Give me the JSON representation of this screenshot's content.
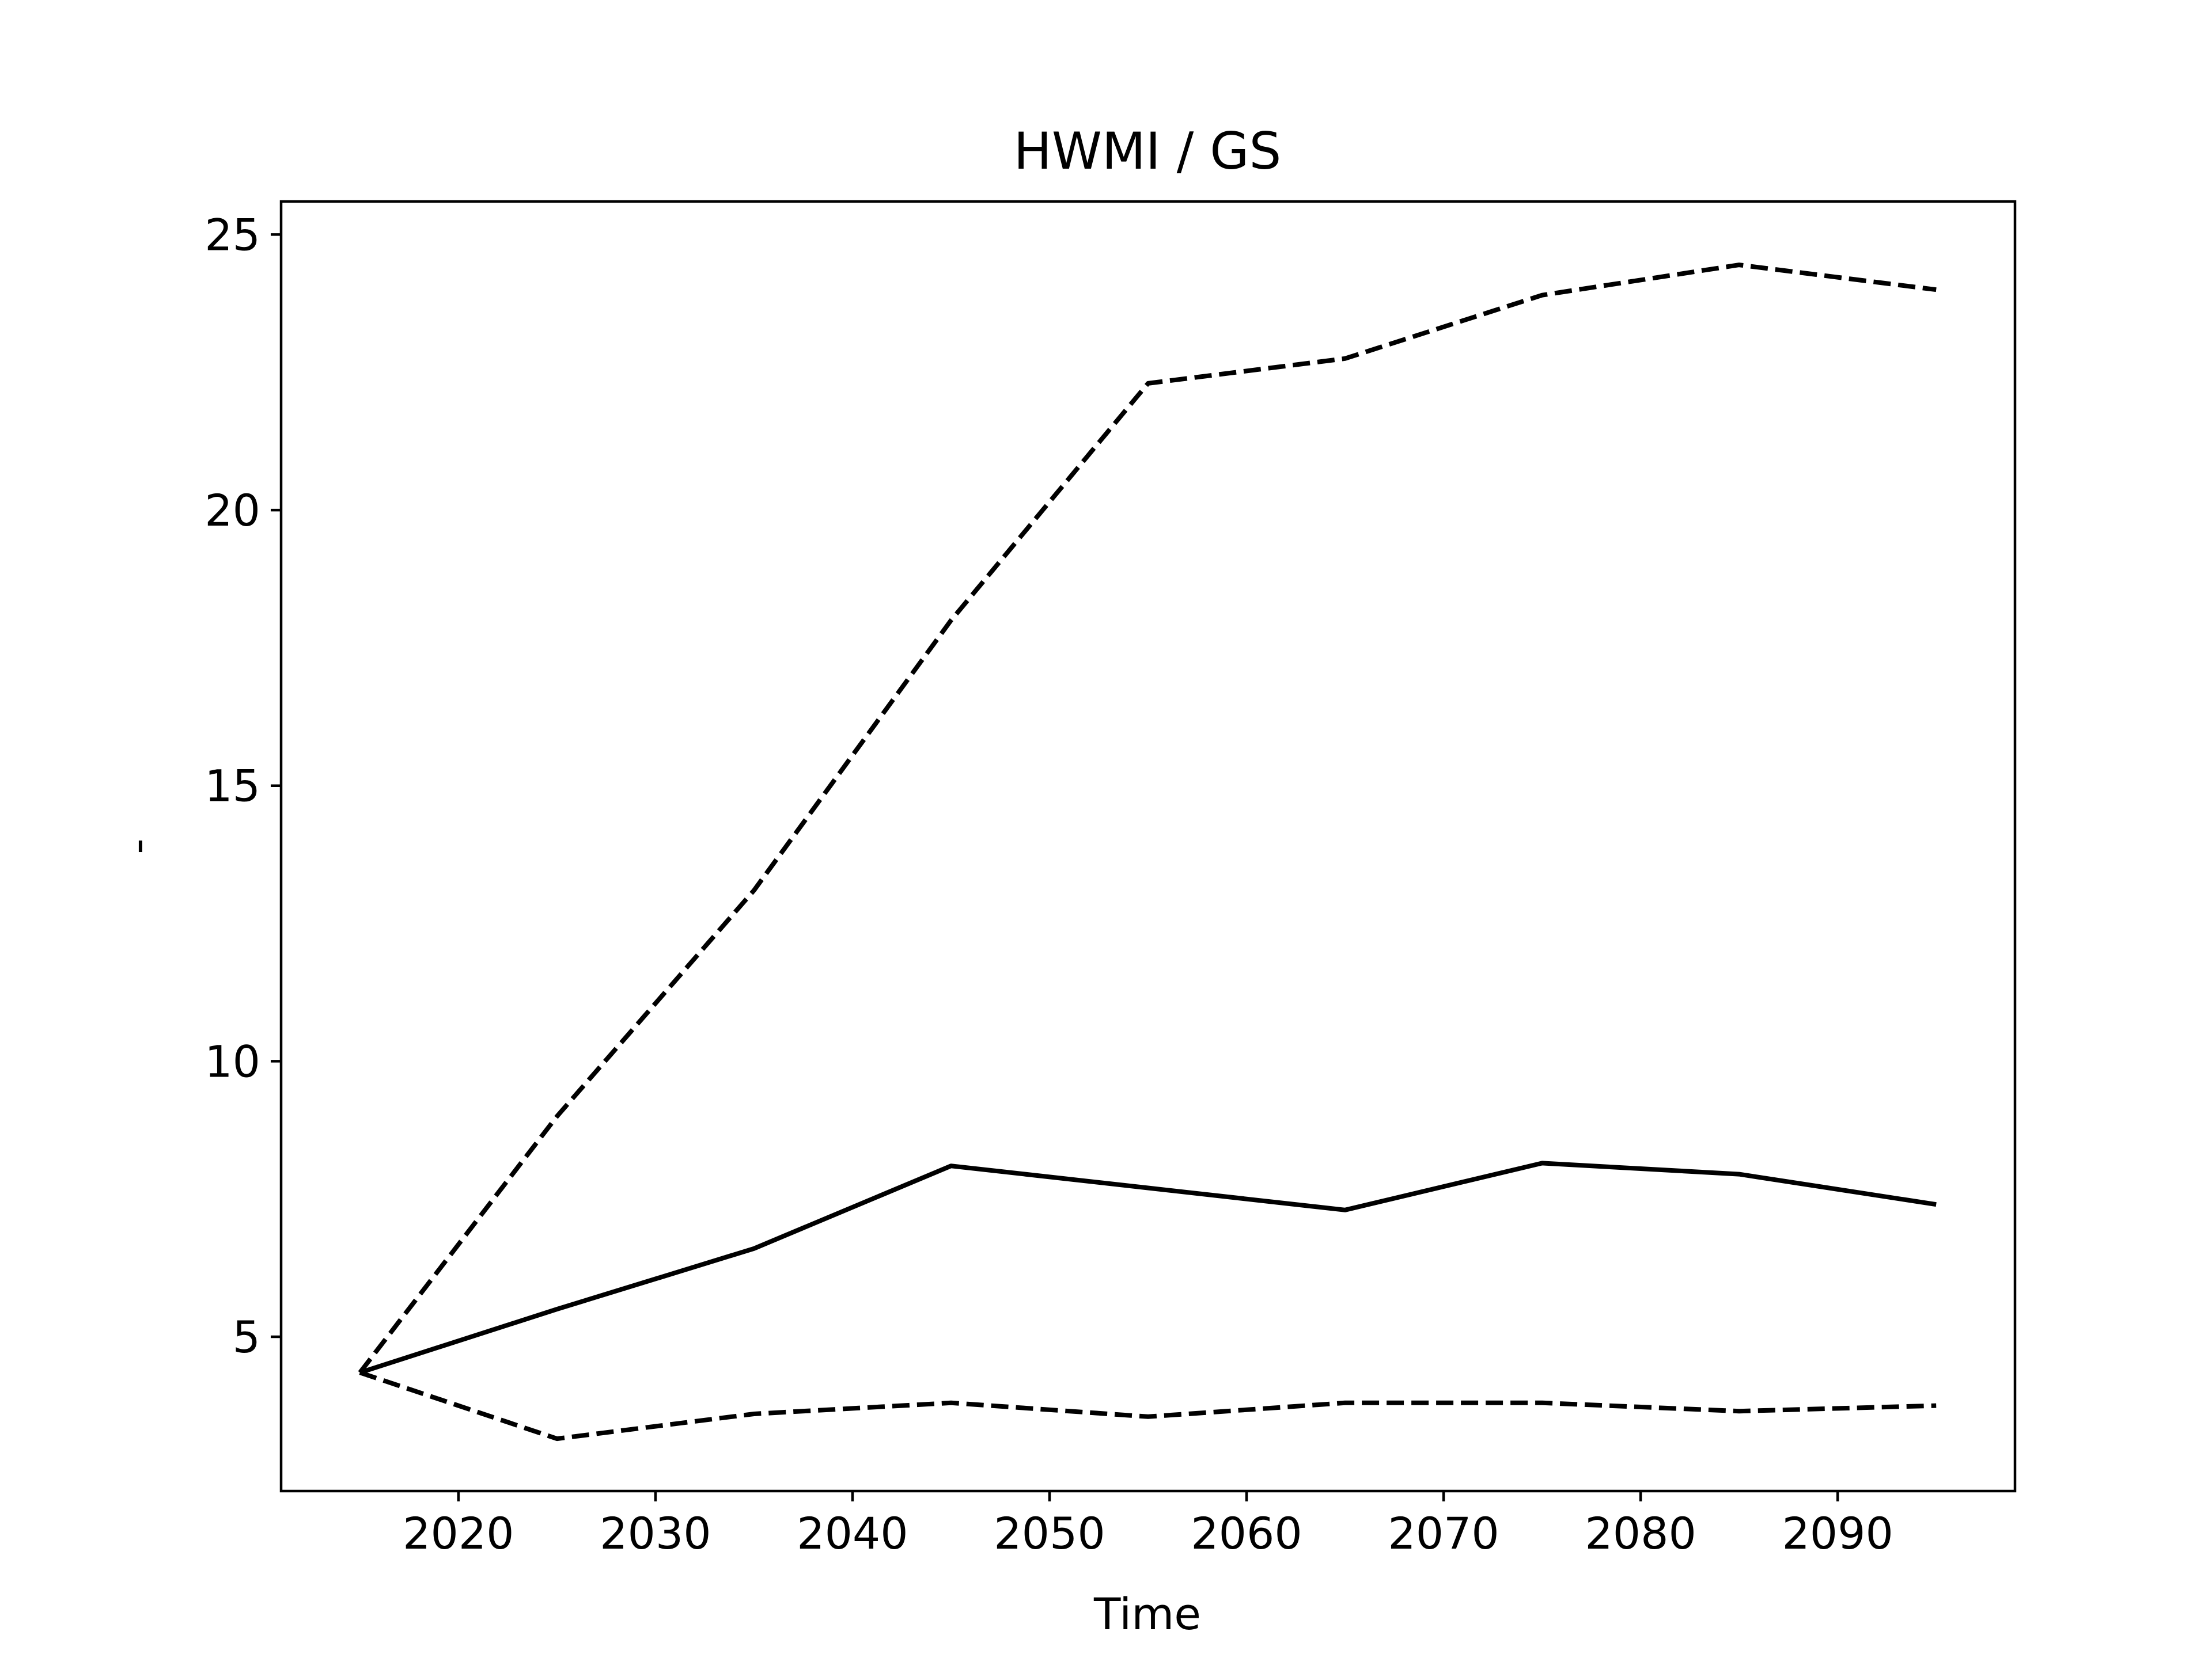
{
  "chart_data": {
    "type": "line",
    "title": "HWMI / GS",
    "xlabel": "Time",
    "ylabel": "-",
    "x": [
      2015,
      2025,
      2035,
      2045,
      2055,
      2065,
      2075,
      2085,
      2095
    ],
    "series": [
      {
        "values": [
          4.35,
          5.5,
          6.6,
          8.1,
          7.7,
          7.3,
          8.15,
          7.95,
          7.4
        ],
        "style": "solid",
        "color": "#000000"
      },
      {
        "values": [
          4.35,
          9.0,
          13.1,
          18.0,
          22.3,
          22.75,
          23.9,
          24.45,
          24.0
        ],
        "style": "dashed",
        "color": "#000000"
      },
      {
        "values": [
          4.35,
          3.15,
          3.6,
          3.8,
          3.55,
          3.8,
          3.8,
          3.65,
          3.75
        ],
        "style": "dashed",
        "color": "#000000"
      }
    ],
    "xlim": [
      2011,
      2099
    ],
    "ylim": [
      2.2,
      25.6
    ],
    "xticks": [
      2020,
      2030,
      2040,
      2050,
      2060,
      2070,
      2080,
      2090
    ],
    "yticks": [
      5,
      10,
      15,
      20,
      25
    ],
    "grid": false,
    "legend": false
  }
}
